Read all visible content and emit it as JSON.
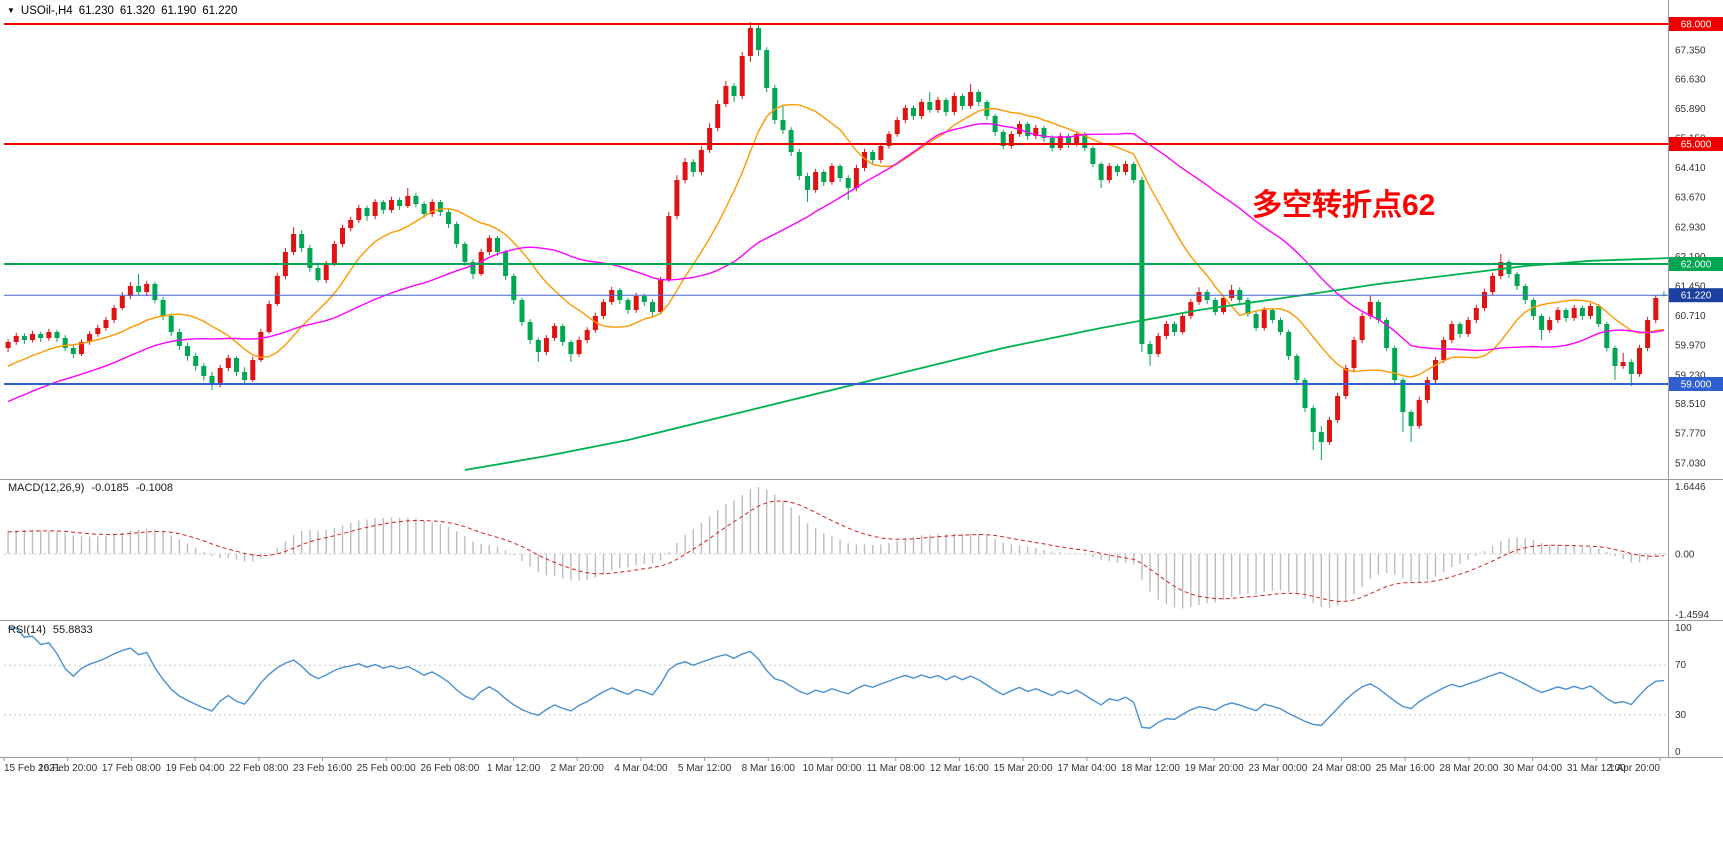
{
  "window": {
    "symbol": "USOil-,H4",
    "open": "61.230",
    "high": "61.320",
    "low": "61.190",
    "close": "61.220"
  },
  "annotation": {
    "text": "多空转折点62",
    "color": "#ff0000"
  },
  "chart_data": {
    "type": "candlestick",
    "symbol": "USOil-",
    "timeframe": "H4",
    "current_candle": {
      "open": 61.23,
      "high": 61.32,
      "low": 61.19,
      "close": 61.22
    },
    "up_color": "#e01212",
    "down_color": "#00a651",
    "price_range": [
      56.75,
      68.3
    ],
    "price_axis_labels": [
      "68.000",
      "67.350",
      "66.630",
      "65.890",
      "65.150",
      "64.410",
      "63.670",
      "62.930",
      "62.190",
      "61.450",
      "60.710",
      "59.970",
      "59.230",
      "58.510",
      "57.770",
      "57.030"
    ],
    "levels": [
      {
        "price": 68.0,
        "label": "68.000",
        "color": "#ee0000"
      },
      {
        "price": 65.0,
        "label": "65.000",
        "color": "#ee0000"
      },
      {
        "price": 62.0,
        "label": "62.000",
        "color": "#00a651"
      },
      {
        "price": 59.0,
        "label": "59.000",
        "color": "#2f5fd0"
      }
    ],
    "last_price": {
      "value": 61.22,
      "label": "61.220",
      "badge_color": "#1b3f9e",
      "line_color": "#4466cc"
    },
    "ma": {
      "fast": {
        "period": 13,
        "color": "#ff9900"
      },
      "medium": {
        "period": 34,
        "color": "#ff00ff"
      },
      "slow": {
        "color": "#00b050",
        "points": [
          [
            56,
            56.85
          ],
          [
            66,
            57.2
          ],
          [
            76,
            57.6
          ],
          [
            88,
            58.2
          ],
          [
            100,
            58.8
          ],
          [
            110,
            59.3
          ],
          [
            122,
            59.9
          ],
          [
            134,
            60.4
          ],
          [
            146,
            60.85
          ],
          [
            158,
            61.2
          ],
          [
            168,
            61.5
          ],
          [
            178,
            61.75
          ],
          [
            186,
            61.95
          ],
          [
            194,
            62.08
          ],
          [
            204,
            62.15
          ]
        ]
      }
    },
    "candles": [
      [
        59.9,
        60.12,
        59.8,
        60.05
      ],
      [
        60.05,
        60.28,
        59.98,
        60.2
      ],
      [
        60.2,
        60.27,
        60.0,
        60.1
      ],
      [
        60.1,
        60.33,
        60.04,
        60.25
      ],
      [
        60.25,
        60.31,
        60.05,
        60.15
      ],
      [
        60.15,
        60.38,
        60.08,
        60.3
      ],
      [
        60.3,
        60.36,
        60.05,
        60.15
      ],
      [
        60.15,
        60.22,
        59.82,
        59.9
      ],
      [
        59.9,
        59.98,
        59.65,
        59.75
      ],
      [
        59.75,
        60.12,
        59.7,
        60.05
      ],
      [
        60.05,
        60.32,
        59.98,
        60.25
      ],
      [
        60.25,
        60.48,
        60.18,
        60.4
      ],
      [
        60.4,
        60.68,
        60.33,
        60.6
      ],
      [
        60.6,
        60.98,
        60.52,
        60.9
      ],
      [
        60.9,
        61.3,
        60.84,
        61.2
      ],
      [
        61.2,
        61.55,
        61.12,
        61.45
      ],
      [
        61.45,
        61.75,
        61.22,
        61.3
      ],
      [
        61.3,
        61.58,
        61.2,
        61.5
      ],
      [
        61.5,
        61.56,
        61.02,
        61.1
      ],
      [
        61.1,
        61.18,
        60.6,
        60.7
      ],
      [
        60.7,
        60.77,
        60.2,
        60.3
      ],
      [
        60.3,
        60.38,
        59.85,
        59.95
      ],
      [
        59.95,
        60.03,
        59.58,
        59.7
      ],
      [
        59.7,
        59.78,
        59.33,
        59.45
      ],
      [
        59.45,
        59.52,
        59.08,
        59.2
      ],
      [
        59.2,
        59.3,
        58.85,
        59.0
      ],
      [
        59.0,
        59.48,
        58.92,
        59.4
      ],
      [
        59.4,
        59.73,
        59.32,
        59.65
      ],
      [
        59.65,
        59.7,
        59.2,
        59.3
      ],
      [
        59.3,
        59.42,
        58.98,
        59.1
      ],
      [
        59.1,
        59.68,
        59.05,
        59.6
      ],
      [
        59.6,
        60.38,
        59.55,
        60.3
      ],
      [
        60.3,
        61.08,
        60.25,
        61.0
      ],
      [
        61.0,
        61.78,
        60.95,
        61.7
      ],
      [
        61.7,
        62.4,
        61.62,
        62.3
      ],
      [
        62.3,
        62.92,
        62.22,
        62.75
      ],
      [
        62.75,
        62.85,
        62.3,
        62.4
      ],
      [
        62.4,
        62.48,
        61.8,
        61.9
      ],
      [
        61.9,
        62.0,
        61.55,
        61.6
      ],
      [
        61.6,
        62.08,
        61.52,
        62.0
      ],
      [
        62.0,
        62.58,
        61.95,
        62.5
      ],
      [
        62.5,
        62.98,
        62.42,
        62.9
      ],
      [
        62.9,
        63.18,
        62.82,
        63.1
      ],
      [
        63.1,
        63.48,
        63.02,
        63.4
      ],
      [
        63.4,
        63.46,
        63.08,
        63.2
      ],
      [
        63.2,
        63.62,
        63.12,
        63.55
      ],
      [
        63.55,
        63.6,
        63.25,
        63.35
      ],
      [
        63.35,
        63.68,
        63.28,
        63.6
      ],
      [
        63.6,
        63.66,
        63.35,
        63.45
      ],
      [
        63.45,
        63.9,
        63.4,
        63.7
      ],
      [
        63.7,
        63.78,
        63.42,
        63.5
      ],
      [
        63.5,
        63.56,
        63.15,
        63.25
      ],
      [
        63.25,
        63.62,
        63.18,
        63.55
      ],
      [
        63.55,
        63.6,
        63.2,
        63.3
      ],
      [
        63.3,
        63.36,
        62.9,
        63.0
      ],
      [
        63.0,
        63.06,
        62.4,
        62.5
      ],
      [
        62.5,
        62.56,
        61.95,
        62.05
      ],
      [
        62.05,
        62.12,
        61.62,
        61.75
      ],
      [
        61.75,
        62.38,
        61.7,
        62.3
      ],
      [
        62.3,
        62.72,
        62.22,
        62.65
      ],
      [
        62.65,
        62.7,
        62.2,
        62.3
      ],
      [
        62.3,
        62.36,
        61.6,
        61.7
      ],
      [
        61.7,
        61.76,
        61.0,
        61.1
      ],
      [
        61.1,
        61.16,
        60.45,
        60.55
      ],
      [
        60.55,
        60.62,
        60.0,
        60.1
      ],
      [
        60.1,
        60.16,
        59.55,
        59.8
      ],
      [
        59.8,
        60.22,
        59.72,
        60.15
      ],
      [
        60.15,
        60.52,
        60.08,
        60.45
      ],
      [
        60.45,
        60.5,
        59.95,
        60.05
      ],
      [
        60.05,
        60.1,
        59.55,
        59.75
      ],
      [
        59.75,
        60.18,
        59.68,
        60.1
      ],
      [
        60.1,
        60.42,
        60.02,
        60.35
      ],
      [
        60.35,
        60.78,
        60.28,
        60.7
      ],
      [
        60.7,
        61.12,
        60.62,
        61.05
      ],
      [
        61.05,
        61.43,
        60.98,
        61.35
      ],
      [
        61.35,
        61.4,
        61.0,
        61.1
      ],
      [
        61.1,
        61.16,
        60.75,
        60.85
      ],
      [
        60.85,
        61.28,
        60.78,
        61.2
      ],
      [
        61.2,
        61.26,
        60.95,
        61.05
      ],
      [
        61.05,
        61.12,
        60.7,
        60.8
      ],
      [
        60.8,
        61.68,
        60.74,
        61.6
      ],
      [
        61.6,
        63.3,
        61.55,
        63.2
      ],
      [
        63.2,
        64.22,
        63.12,
        64.1
      ],
      [
        64.1,
        64.65,
        64.02,
        64.55
      ],
      [
        64.55,
        64.62,
        64.18,
        64.3
      ],
      [
        64.3,
        64.95,
        64.22,
        64.85
      ],
      [
        64.85,
        65.52,
        64.78,
        65.4
      ],
      [
        65.4,
        66.1,
        65.32,
        66.0
      ],
      [
        66.0,
        66.58,
        65.92,
        66.45
      ],
      [
        66.45,
        66.52,
        66.05,
        66.2
      ],
      [
        66.2,
        67.3,
        66.12,
        67.2
      ],
      [
        67.2,
        68.05,
        67.05,
        67.9
      ],
      [
        67.9,
        67.98,
        67.2,
        67.35
      ],
      [
        67.35,
        67.42,
        66.3,
        66.4
      ],
      [
        66.4,
        66.48,
        65.5,
        65.6
      ],
      [
        65.6,
        65.95,
        65.25,
        65.35
      ],
      [
        65.35,
        65.42,
        64.7,
        64.8
      ],
      [
        64.8,
        64.88,
        64.1,
        64.2
      ],
      [
        64.2,
        64.28,
        63.55,
        63.85
      ],
      [
        63.85,
        64.38,
        63.78,
        64.3
      ],
      [
        64.3,
        64.36,
        63.95,
        64.05
      ],
      [
        64.05,
        64.52,
        63.98,
        64.45
      ],
      [
        64.45,
        64.5,
        64.05,
        64.15
      ],
      [
        64.15,
        64.22,
        63.6,
        63.9
      ],
      [
        63.9,
        64.48,
        63.82,
        64.4
      ],
      [
        64.4,
        64.88,
        64.32,
        64.8
      ],
      [
        64.8,
        64.86,
        64.5,
        64.6
      ],
      [
        64.6,
        65.02,
        64.52,
        64.95
      ],
      [
        64.95,
        65.32,
        64.88,
        65.25
      ],
      [
        65.25,
        65.68,
        65.18,
        65.6
      ],
      [
        65.6,
        65.98,
        65.52,
        65.9
      ],
      [
        65.9,
        65.96,
        65.6,
        65.7
      ],
      [
        65.7,
        66.12,
        65.62,
        66.05
      ],
      [
        66.05,
        66.3,
        65.78,
        65.85
      ],
      [
        65.85,
        66.18,
        65.78,
        66.1
      ],
      [
        66.1,
        66.16,
        65.7,
        65.8
      ],
      [
        65.8,
        66.28,
        65.72,
        66.2
      ],
      [
        66.2,
        66.26,
        65.85,
        65.95
      ],
      [
        65.95,
        66.5,
        65.88,
        66.3
      ],
      [
        66.3,
        66.36,
        65.95,
        66.05
      ],
      [
        66.05,
        66.1,
        65.6,
        65.7
      ],
      [
        65.7,
        65.76,
        65.2,
        65.3
      ],
      [
        65.3,
        65.36,
        64.88,
        64.95
      ],
      [
        64.95,
        65.32,
        64.88,
        65.25
      ],
      [
        65.25,
        65.58,
        65.18,
        65.5
      ],
      [
        65.5,
        65.55,
        65.1,
        65.2
      ],
      [
        65.2,
        65.48,
        65.12,
        65.4
      ],
      [
        65.4,
        65.46,
        65.05,
        65.15
      ],
      [
        65.15,
        65.22,
        64.82,
        64.9
      ],
      [
        64.9,
        65.28,
        64.84,
        65.2
      ],
      [
        65.2,
        65.26,
        64.9,
        65.0
      ],
      [
        65.0,
        65.32,
        64.94,
        65.25
      ],
      [
        65.25,
        65.3,
        64.82,
        64.9
      ],
      [
        64.9,
        64.96,
        64.42,
        64.5
      ],
      [
        64.5,
        64.56,
        63.9,
        64.1
      ],
      [
        64.1,
        64.52,
        64.02,
        64.45
      ],
      [
        64.45,
        64.5,
        64.2,
        64.3
      ],
      [
        64.3,
        64.58,
        64.22,
        64.5
      ],
      [
        64.5,
        64.55,
        64.02,
        64.1
      ],
      [
        64.1,
        64.18,
        59.8,
        60.0
      ],
      [
        60.0,
        60.08,
        59.45,
        59.75
      ],
      [
        59.75,
        60.28,
        59.68,
        60.2
      ],
      [
        60.2,
        60.58,
        60.12,
        60.5
      ],
      [
        60.5,
        60.56,
        60.2,
        60.3
      ],
      [
        60.3,
        60.78,
        60.24,
        60.7
      ],
      [
        60.7,
        61.12,
        60.62,
        61.05
      ],
      [
        61.05,
        61.42,
        60.98,
        61.3
      ],
      [
        61.3,
        61.36,
        61.0,
        61.1
      ],
      [
        61.1,
        61.16,
        60.72,
        60.8
      ],
      [
        60.8,
        61.22,
        60.74,
        61.15
      ],
      [
        61.15,
        61.48,
        61.08,
        61.35
      ],
      [
        61.35,
        61.42,
        61.02,
        61.1
      ],
      [
        61.1,
        61.16,
        60.68,
        60.75
      ],
      [
        60.75,
        60.82,
        60.32,
        60.4
      ],
      [
        60.4,
        60.92,
        60.34,
        60.85
      ],
      [
        60.85,
        60.9,
        60.52,
        60.6
      ],
      [
        60.6,
        60.66,
        60.22,
        60.3
      ],
      [
        60.3,
        60.36,
        59.6,
        59.7
      ],
      [
        59.7,
        59.76,
        59.0,
        59.1
      ],
      [
        59.1,
        59.16,
        58.3,
        58.4
      ],
      [
        58.4,
        58.46,
        57.35,
        57.8
      ],
      [
        57.8,
        57.95,
        57.1,
        57.55
      ],
      [
        57.55,
        58.18,
        57.48,
        58.1
      ],
      [
        58.1,
        58.78,
        58.02,
        58.7
      ],
      [
        58.7,
        59.48,
        58.62,
        59.4
      ],
      [
        59.4,
        60.18,
        59.32,
        60.1
      ],
      [
        60.1,
        60.78,
        60.02,
        60.7
      ],
      [
        60.7,
        61.2,
        60.62,
        61.05
      ],
      [
        61.05,
        61.1,
        60.52,
        60.6
      ],
      [
        60.6,
        60.66,
        59.82,
        59.9
      ],
      [
        59.9,
        59.96,
        59.0,
        59.1
      ],
      [
        59.1,
        59.16,
        57.8,
        58.3
      ],
      [
        58.3,
        58.36,
        57.55,
        57.95
      ],
      [
        57.95,
        58.68,
        57.88,
        58.6
      ],
      [
        58.6,
        59.18,
        58.52,
        59.1
      ],
      [
        59.1,
        59.68,
        59.02,
        59.6
      ],
      [
        59.6,
        60.18,
        59.52,
        60.1
      ],
      [
        60.1,
        60.58,
        60.02,
        60.5
      ],
      [
        60.5,
        60.56,
        60.15,
        60.25
      ],
      [
        60.25,
        60.68,
        60.18,
        60.6
      ],
      [
        60.6,
        60.98,
        60.52,
        60.9
      ],
      [
        60.9,
        61.38,
        60.82,
        61.3
      ],
      [
        61.3,
        61.78,
        61.22,
        61.7
      ],
      [
        61.7,
        62.25,
        61.62,
        62.05
      ],
      [
        62.05,
        62.1,
        61.65,
        61.75
      ],
      [
        61.75,
        61.8,
        61.35,
        61.45
      ],
      [
        61.45,
        61.5,
        61.0,
        61.1
      ],
      [
        61.1,
        61.16,
        60.6,
        60.7
      ],
      [
        60.7,
        60.76,
        60.1,
        60.35
      ],
      [
        60.35,
        60.68,
        60.28,
        60.6
      ],
      [
        60.6,
        60.92,
        60.52,
        60.85
      ],
      [
        60.85,
        60.9,
        60.55,
        60.65
      ],
      [
        60.65,
        60.98,
        60.58,
        60.9
      ],
      [
        60.9,
        60.96,
        60.6,
        60.7
      ],
      [
        60.7,
        61.02,
        60.62,
        60.95
      ],
      [
        60.95,
        61.0,
        60.42,
        60.5
      ],
      [
        60.5,
        60.56,
        59.82,
        59.9
      ],
      [
        59.9,
        59.96,
        59.1,
        59.45
      ],
      [
        59.45,
        59.78,
        59.38,
        59.55
      ],
      [
        59.55,
        59.62,
        58.95,
        59.25
      ],
      [
        59.25,
        59.98,
        59.18,
        59.9
      ],
      [
        59.9,
        60.68,
        59.82,
        60.6
      ],
      [
        60.6,
        61.22,
        60.52,
        61.15
      ],
      [
        61.23,
        61.32,
        61.19,
        61.22
      ]
    ],
    "time_labels": [
      "15 Feb 2021",
      "16 Feb 20:00",
      "17 Feb 08:00",
      "19 Feb 04:00",
      "22 Feb 08:00",
      "23 Feb 16:00",
      "25 Feb 00:00",
      "26 Feb 08:00",
      "1 Mar 12:00",
      "2 Mar 20:00",
      "4 Mar 04:00",
      "5 Mar 12:00",
      "8 Mar 16:00",
      "10 Mar 00:00",
      "11 Mar 08:00",
      "12 Mar 16:00",
      "15 Mar 20:00",
      "17 Mar 04:00",
      "18 Mar 12:00",
      "19 Mar 20:00",
      "23 Mar 00:00",
      "24 Mar 08:00",
      "25 Mar 16:00",
      "28 Mar 20:00",
      "30 Mar 04:00",
      "31 Mar 12:00",
      "1 Apr 20:00"
    ],
    "macd": {
      "label": "MACD(12,26,9)",
      "main": "-0.0185",
      "signal": "-0.1008",
      "fast_period": 12,
      "slow_period": 26,
      "signal_period": 9,
      "axis": [
        "1.6446",
        "0.00",
        "-1.4594"
      ],
      "range": [
        -1.4594,
        1.6446
      ],
      "hist_color": "#bdbdbd",
      "signal_color": "#d42020"
    },
    "rsi": {
      "label": "RSI(14)",
      "value": "55.8833",
      "period": 14,
      "axis": [
        "100",
        "70",
        "30",
        "0"
      ],
      "levels": [
        70,
        30
      ],
      "range": [
        0,
        100
      ],
      "color": "#4a90d0"
    }
  }
}
